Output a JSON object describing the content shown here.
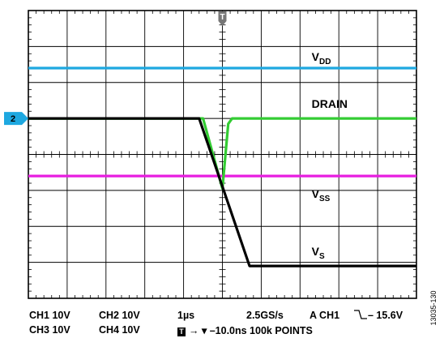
{
  "chart_data": {
    "type": "line",
    "title": "",
    "xlabel": "",
    "ylabel": "",
    "grid": true,
    "divisions": {
      "x": 10,
      "y": 8
    },
    "xlim": [
      -5,
      5
    ],
    "ylim": [
      -4,
      4
    ],
    "x_unit": "div",
    "y_unit": "div",
    "series": [
      {
        "name": "VDD",
        "color": "#1ea8e0",
        "x": [
          -5,
          5
        ],
        "y": [
          2.4,
          2.4
        ]
      },
      {
        "name": "DRAIN",
        "color": "#33cc33",
        "x": [
          -5,
          -0.5,
          0.0,
          0.15,
          0.25,
          5
        ],
        "y": [
          1.0,
          1.0,
          -0.95,
          0.85,
          1.0,
          1.0
        ]
      },
      {
        "name": "VSS",
        "color": "#e81ee0",
        "x": [
          -5,
          5
        ],
        "y": [
          -0.6,
          -0.6
        ]
      },
      {
        "name": "VS",
        "color": "#000000",
        "x": [
          -5,
          -0.6,
          0.7,
          5
        ],
        "y": [
          1.0,
          1.0,
          -3.1,
          -3.1
        ]
      }
    ],
    "labels": [
      {
        "text": "V",
        "sub": "DD",
        "x": 2.3,
        "y": 2.6
      },
      {
        "text": "DRAIN",
        "sub": "",
        "x": 2.3,
        "y": 1.3
      },
      {
        "text": "V",
        "sub": "SS",
        "x": 2.3,
        "y": -1.2
      },
      {
        "text": "V",
        "sub": "S",
        "x": 2.3,
        "y": -2.8
      }
    ],
    "trigger_marker": "T",
    "channel_marker": {
      "text": "2",
      "y": 1.0,
      "color": "#1ea8e0"
    }
  },
  "footer": {
    "row1": [
      "CH1  10V",
      "CH2  10V",
      "1µs",
      "2.5GS/s",
      "A  CH1",
      "– 15.6V"
    ],
    "row2": [
      "CH3  10V",
      "CH4  10V",
      "T",
      "→ ▾ –10.0ns 100k POINTS"
    ],
    "trigger_edge_icon": "falling-edge-icon"
  },
  "figure_code": "13035-130"
}
